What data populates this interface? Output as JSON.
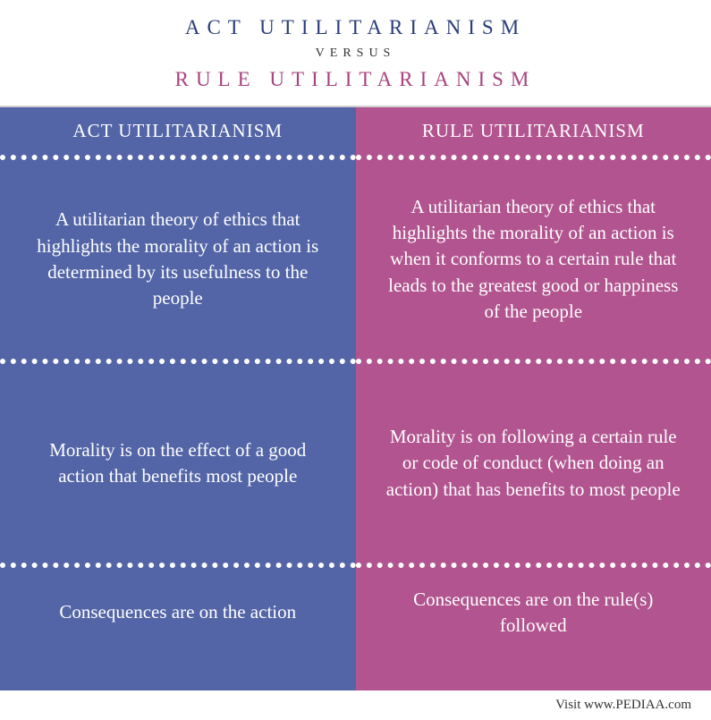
{
  "header": {
    "title1": "ACT UTILITARIANISM",
    "title1_color": "#2a3d7a",
    "versus": "VERSUS",
    "title2": "RULE UTILITARIANISM",
    "title2_color": "#a8437f"
  },
  "columns": {
    "left": {
      "bg_color": "#5365a7",
      "divider_color": "#ffffff",
      "header": "ACT UTILITARIANISM",
      "rows": [
        "A utilitarian theory of ethics that highlights the morality of an action is determined by its usefulness to the people",
        "Morality is on the effect of a good action that benefits most people",
        "Consequences are on the action"
      ]
    },
    "right": {
      "bg_color": "#b2548f",
      "divider_color": "#ffffff",
      "header": "RULE UTILITARIANISM",
      "rows": [
        "A utilitarian theory of ethics that highlights the morality of an action is when it conforms to a certain rule that leads to the greatest good or happiness of the people",
        "Morality is on following a certain rule or code of conduct (when doing an action) that has benefits to most people",
        "Consequences are on the rule(s) followed"
      ]
    }
  },
  "footer": "Visit www.PEDIAA.com"
}
